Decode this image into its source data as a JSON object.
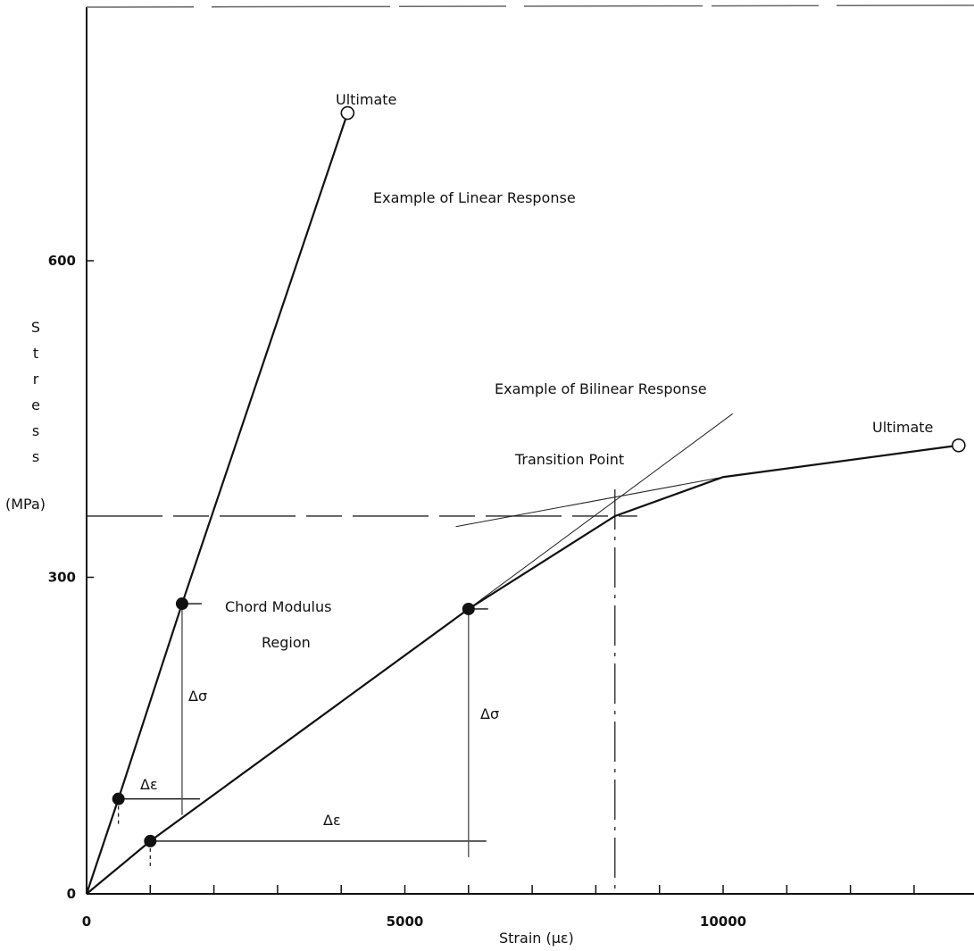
{
  "chart_data": {
    "type": "line",
    "xlabel": "Strain (με)",
    "ylabel": "Stress (MPa)",
    "ylabel_letters": [
      "S",
      "t",
      "r",
      "e",
      "s",
      "s"
    ],
    "ylabel_unit": "(MPa)",
    "xlim": [
      0,
      14000
    ],
    "ylim": [
      0,
      840
    ],
    "x_ticks": [
      0,
      5000,
      10000
    ],
    "y_ticks": [
      0,
      300,
      600
    ],
    "x_minor_ticks": [
      1000,
      2000,
      3000,
      4000,
      5000,
      6000,
      7000,
      8000,
      9000,
      10000,
      11000,
      12000,
      13000
    ],
    "grid": false,
    "series": [
      {
        "x": [
          0,
          500,
          1500,
          4100
        ],
        "y": [
          0,
          90,
          275,
          740
        ],
        "ultimate": {
          "x": 4100,
          "y": 740
        },
        "chord_points": [
          {
            "x": 500,
            "y": 90
          },
          {
            "x": 1500,
            "y": 275
          }
        ]
      },
      {
        "x": [
          0,
          1000,
          6000,
          8300,
          10000,
          13700
        ],
        "y": [
          0,
          50,
          270,
          358,
          395,
          425
        ],
        "ultimate": {
          "x": 13700,
          "y": 425
        },
        "chord_points": [
          {
            "x": 1000,
            "y": 50
          },
          {
            "x": 6000,
            "y": 270
          }
        ]
      }
    ],
    "transition_point": {
      "x": 8300,
      "y": 358
    },
    "tangent_lines": [
      {
        "x": [
          6000,
          10150
        ],
        "y": [
          270,
          455
        ]
      },
      {
        "x": [
          5800,
          10000
        ],
        "y": [
          348,
          395
        ]
      }
    ],
    "annotations": {
      "ultimate_linear": "Ultimate",
      "ultimate_bilinear": "Ultimate",
      "linear_title": "Example of Linear Response",
      "bilinear_title": "Example of Bilinear Response",
      "transition": "Transition Point",
      "chord_line1": "Chord Modulus",
      "chord_line2": "Region",
      "delta_sigma": "Δσ",
      "delta_epsilon": "Δε"
    }
  }
}
